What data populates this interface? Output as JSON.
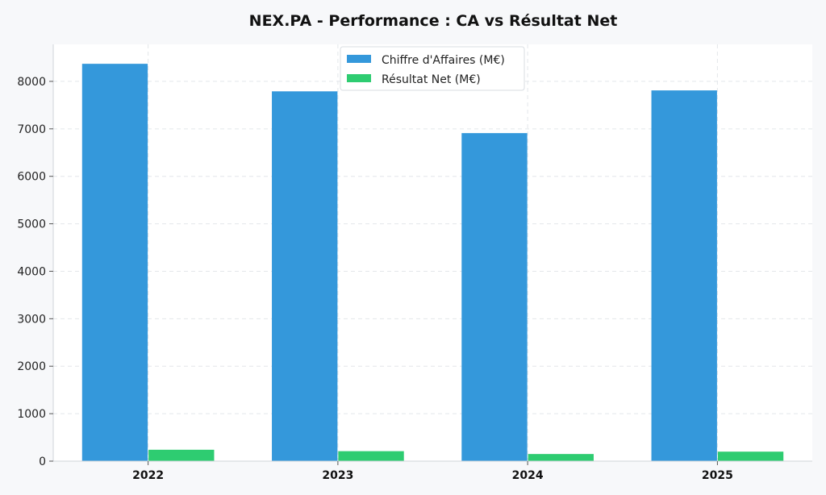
{
  "chart_data": {
    "type": "bar",
    "title": "NEX.PA - Performance : CA vs Résultat Net",
    "categories": [
      "2022",
      "2023",
      "2024",
      "2025"
    ],
    "series": [
      {
        "name": "Chiffre d'Affaires (M€)",
        "values": [
          8370,
          7790,
          6910,
          7810
        ],
        "color": "#3498db"
      },
      {
        "name": "Résultat Net (M€)",
        "values": [
          240,
          210,
          150,
          200
        ],
        "color": "#2ecc71"
      }
    ],
    "yticks": [
      "0",
      "1000",
      "2000",
      "3000",
      "4000",
      "5000",
      "6000",
      "7000",
      "8000"
    ],
    "ylim": [
      0,
      8780
    ],
    "xlabel": "",
    "ylabel": "",
    "grid": true,
    "legend_position": "top-center"
  }
}
